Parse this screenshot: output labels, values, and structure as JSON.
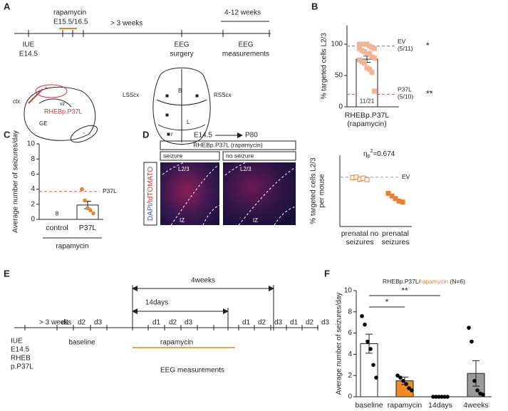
{
  "panels": {
    "A": {
      "letter": "A",
      "drug": "rapamycin",
      "drug_time": "E15.5/16.5",
      "gap": "> 3 weeks",
      "window": "4-12 weeks",
      "iue": [
        "IUE",
        "E14.5"
      ],
      "surgery": [
        "EEG",
        "surgery"
      ],
      "measure": [
        "EEG",
        "measurements"
      ],
      "brain": {
        "ctx": "ctx",
        "vz": "vz",
        "construct": "RHEBp.P37L",
        "ge": "GE"
      },
      "skull": {
        "left": "LSScx",
        "right": "RSScx",
        "b": "B",
        "l": "L",
        "r": "r"
      }
    },
    "B": {
      "letter": "B"
    },
    "C": {
      "letter": "C"
    },
    "D": {
      "letter": "D",
      "from": "E14.5",
      "to": "P80",
      "condition": "RHEBp.P37L (rapamycin)",
      "groups": [
        "seizure",
        "no seizure"
      ],
      "stain": [
        "DAPI/",
        "tdTOMATO"
      ],
      "image_labels": [
        [
          "L2/3",
          "IZ"
        ],
        [
          "L2/3",
          "IZ"
        ]
      ]
    },
    "E": {
      "letter": "E",
      "span_long": "4weeks",
      "span_short": "14days",
      "gap": "> 3 weeks",
      "days": [
        [
          "d1",
          "d2",
          "d3"
        ],
        [
          "d1",
          "d2",
          "d3"
        ],
        [
          "d1",
          "d2",
          "d3"
        ],
        [
          "d1",
          "d2",
          "d3"
        ]
      ],
      "baseline": "baseline",
      "drug": "rapamycin",
      "iue": [
        "IUE",
        "E14.5",
        "RHEB",
        "p.P37L"
      ],
      "eeg": "EEG measurements"
    },
    "F": {
      "letter": "F"
    }
  },
  "chart_data": [
    {
      "type": "bar",
      "ylabel": [
        "% targeted cells L2/3"
      ],
      "categories": [
        "RHEBp.P37L (rapamycin)"
      ],
      "values": [
        76
      ],
      "errors": [
        5
      ],
      "bar_colors": [
        "#ffffff"
      ],
      "point_color": "#f4b396",
      "markers": [
        "filled"
      ],
      "points": [
        [
          100,
          100,
          100,
          100,
          97,
          95,
          93,
          93,
          90,
          88,
          85,
          85,
          80,
          78,
          75,
          72,
          70,
          62,
          60,
          55,
          25
        ]
      ],
      "bar_labels": [
        "11/21"
      ],
      "ref_lines": [
        {
          "value": 97,
          "label": "EV",
          "count": "(5/11)",
          "sig": "*",
          "color": "#777777"
        },
        {
          "value": 20,
          "label": "P37L",
          "count": "(5/10)",
          "sig": "**",
          "color": "#e0504a"
        }
      ],
      "ylim": [
        0,
        130
      ],
      "yticks": [
        0,
        50,
        100
      ]
    },
    {
      "type": "bar",
      "ylabel": [
        "Average number of seizures/day"
      ],
      "categories": [
        "control",
        "P37L"
      ],
      "values": [
        0,
        1.9
      ],
      "errors": [
        0,
        0.5
      ],
      "bar_colors": [
        "#ffffff",
        "#ffffff"
      ],
      "point_color": "#e8822e",
      "markers": [
        "filled",
        "filled"
      ],
      "points": [
        [],
        [
          4,
          2.5,
          1.5,
          1.2,
          0.8
        ]
      ],
      "n_labels": [
        "8",
        null
      ],
      "group_label": "rapamycin",
      "ref_lines": [
        {
          "value": 3.7,
          "label": "P37L",
          "color": "#e0504a"
        }
      ],
      "ylim": [
        0,
        10
      ],
      "yticks": [
        0,
        2,
        4,
        6,
        8,
        10
      ]
    },
    {
      "type": "scatter",
      "ylabel": [
        "% targeted cells L2/3",
        "per mouse"
      ],
      "categories": [
        "prenatal no seizures",
        "prenatal seizures"
      ],
      "point_color": "#e8822e",
      "markers": [
        "open",
        "filled"
      ],
      "points": [
        [
          96,
          97,
          93,
          95,
          92
        ],
        [
          65,
          60,
          55,
          50,
          48
        ]
      ],
      "annotation": {
        "symbol": "η",
        "sub": "p",
        "sup": "2",
        "text": "=0.674"
      },
      "ref_lines": [
        {
          "value": 97,
          "label": "EV",
          "color": "#999999"
        }
      ],
      "ylim": [
        0,
        140
      ]
    },
    {
      "type": "bar",
      "title": {
        "prefix": "RHEBp.P37L/",
        "drug": "rapamycin",
        "suffix": " (N=6)"
      },
      "ylabel": [
        "Average number of seizures/day"
      ],
      "categories": [
        "baseline",
        "rapamycin",
        "14days",
        "4weeks"
      ],
      "values": [
        5.0,
        1.5,
        0,
        2.2
      ],
      "errors": [
        0.9,
        0.35,
        0,
        1.2
      ],
      "bar_colors": [
        "#ffffff",
        "#f08a24",
        "#ffffff",
        "#9a9a9a"
      ],
      "point_color": "#000000",
      "markers": [
        "filled",
        "filled",
        "filled",
        "filled"
      ],
      "points": [
        [
          7.6,
          6.8,
          5.2,
          4.5,
          3.0,
          1.8
        ],
        [
          2.0,
          1.8,
          1.5,
          1.2,
          0.8,
          0.6
        ],
        [
          0,
          0,
          0,
          0,
          0,
          0
        ],
        [
          6.5,
          5.2,
          1.5,
          0.6,
          0.3,
          0.2
        ]
      ],
      "significance": [
        "*",
        "**"
      ],
      "ylim": [
        0,
        10
      ],
      "yticks": [
        0,
        2,
        4,
        6,
        8,
        10
      ]
    }
  ]
}
